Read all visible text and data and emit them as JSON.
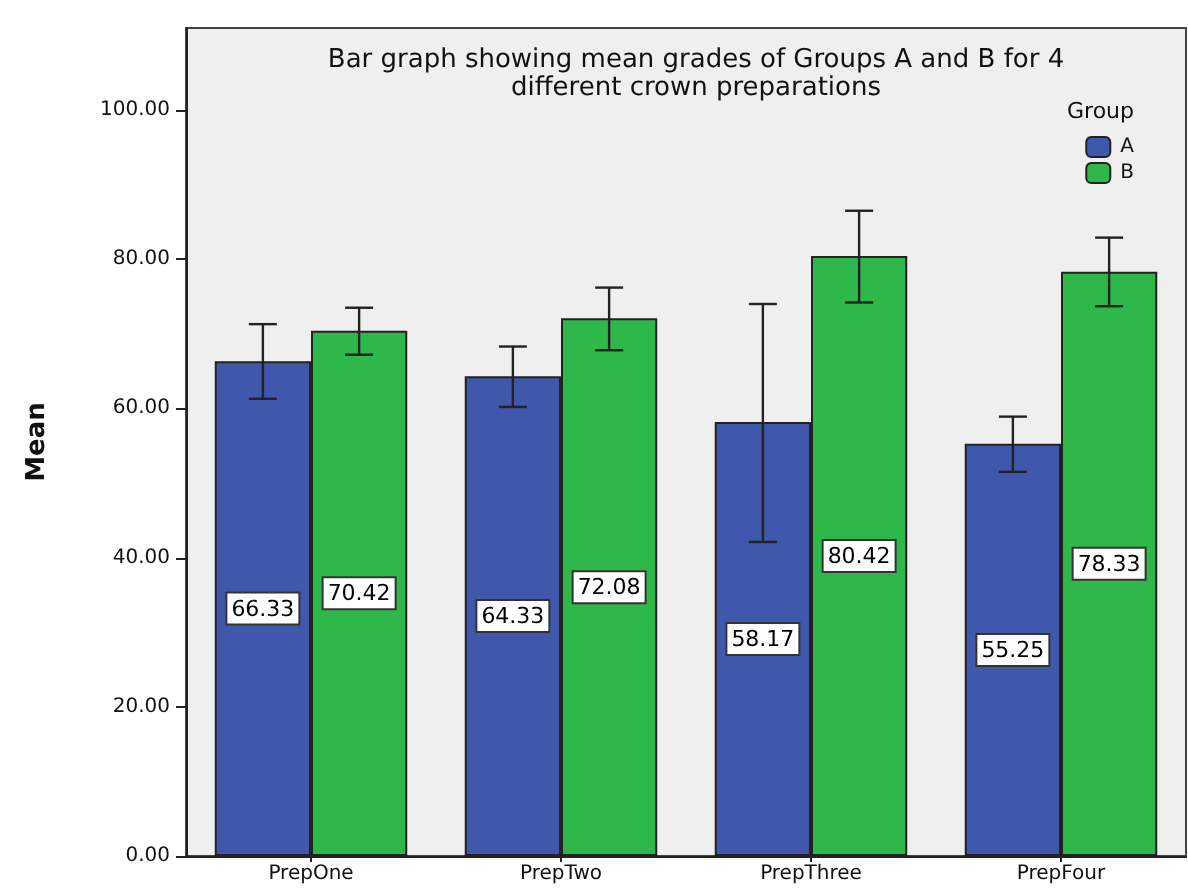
{
  "chart_data": {
    "type": "bar",
    "title": "Bar graph showing mean grades of Groups A and B for 4\ndifferent crown preparations",
    "ylabel": "Mean",
    "legend_title": "Group",
    "categories": [
      "PrepOne",
      "PrepTwo",
      "PrepThree",
      "PrepFour"
    ],
    "series": [
      {
        "name": "A",
        "color": "#3f58ac",
        "values": [
          66.33,
          64.33,
          58.17,
          55.25
        ],
        "errors": [
          [
            61.3,
            71.3
          ],
          [
            60.2,
            68.3
          ],
          [
            42.1,
            74.0
          ],
          [
            51.5,
            58.9
          ]
        ]
      },
      {
        "name": "B",
        "color": "#2eb84a",
        "values": [
          70.42,
          72.08,
          80.42,
          78.33
        ],
        "errors": [
          [
            67.2,
            73.5
          ],
          [
            67.8,
            76.2
          ],
          [
            74.2,
            86.5
          ],
          [
            73.7,
            82.9
          ]
        ]
      }
    ],
    "ylim": [
      0,
      111
    ],
    "yticks": [
      {
        "value": 0,
        "label": "0.00"
      },
      {
        "value": 20,
        "label": "20.00"
      },
      {
        "value": 40,
        "label": "40.00"
      },
      {
        "value": 60,
        "label": "60.00"
      },
      {
        "value": 80,
        "label": "80.00"
      },
      {
        "value": 100,
        "label": "100.00"
      }
    ],
    "data_labels": true,
    "legend": "top right",
    "grid": false
  }
}
